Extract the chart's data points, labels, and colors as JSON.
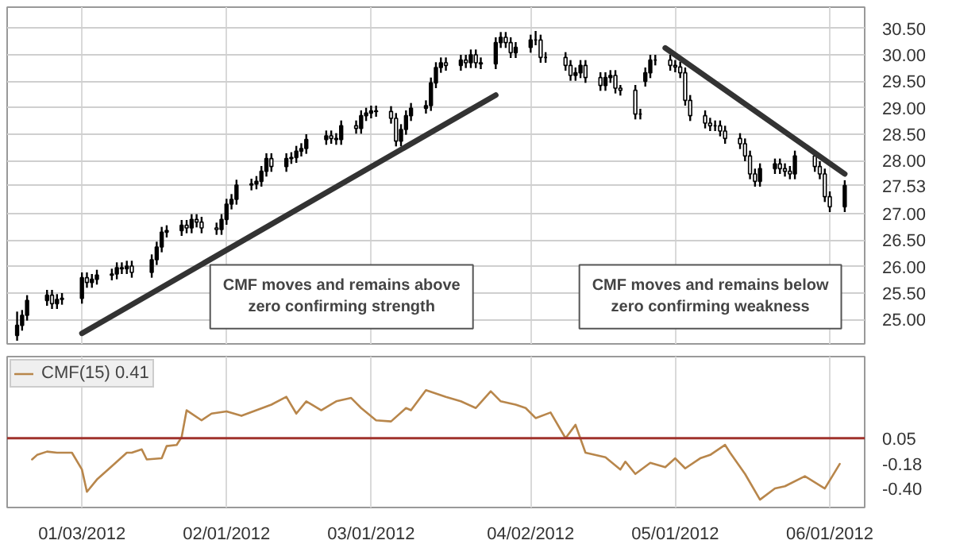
{
  "chart_data": [
    {
      "type": "candlestick",
      "color": "#000000",
      "grid": true,
      "tick_labels": "y",
      "xlim": [
        "2011-12-19",
        "2012-06-08"
      ],
      "xticks": [
        {
          "value": "2012-01-03",
          "label": null
        },
        {
          "value": "2012-02-01",
          "label": null
        },
        {
          "value": "2012-03-01",
          "label": null
        },
        {
          "value": "2012-04-02",
          "label": null
        },
        {
          "value": "2012-05-01",
          "label": null
        },
        {
          "value": "2012-06-01",
          "label": null
        }
      ],
      "ylim": [
        24.54,
        30.9
      ],
      "yticks": [
        {
          "value": 25,
          "label": "25.00"
        },
        {
          "value": 25.5,
          "label": "25.50"
        },
        {
          "value": 26,
          "label": "26.00"
        },
        {
          "value": 26.5,
          "label": "26.50"
        },
        {
          "value": 27,
          "label": "27.00"
        },
        {
          "value": 27.53,
          "label": "27.53"
        },
        {
          "value": 28,
          "label": "28.00"
        },
        {
          "value": 28.5,
          "label": "28.50"
        },
        {
          "value": 29,
          "label": "29.00"
        },
        {
          "value": 29.5,
          "label": "29.50"
        },
        {
          "value": 30,
          "label": "30.00"
        },
        {
          "value": 30.5,
          "label": "30.50"
        }
      ],
      "x": [
        "2011-12-21",
        "2011-12-22",
        "2011-12-23",
        "2011-12-27",
        "2011-12-28",
        "2011-12-29",
        "2011-12-30",
        "2012-01-03",
        "2012-01-04",
        "2012-01-05",
        "2012-01-06",
        "2012-01-09",
        "2012-01-10",
        "2012-01-11",
        "2012-01-12",
        "2012-01-13",
        "2012-01-17",
        "2012-01-18",
        "2012-01-19",
        "2012-01-20",
        "2012-01-23",
        "2012-01-24",
        "2012-01-25",
        "2012-01-26",
        "2012-01-27",
        "2012-01-30",
        "2012-01-31",
        "2012-02-01",
        "2012-02-02",
        "2012-02-03",
        "2012-02-06",
        "2012-02-07",
        "2012-02-08",
        "2012-02-09",
        "2012-02-10",
        "2012-02-13",
        "2012-02-14",
        "2012-02-15",
        "2012-02-16",
        "2012-02-17",
        "2012-02-21",
        "2012-02-22",
        "2012-02-23",
        "2012-02-24",
        "2012-02-27",
        "2012-02-28",
        "2012-02-29",
        "2012-03-01",
        "2012-03-02",
        "2012-03-05",
        "2012-03-06",
        "2012-03-07",
        "2012-03-08",
        "2012-03-09",
        "2012-03-12",
        "2012-03-13",
        "2012-03-14",
        "2012-03-15",
        "2012-03-16",
        "2012-03-19",
        "2012-03-20",
        "2012-03-21",
        "2012-03-22",
        "2012-03-23",
        "2012-03-26",
        "2012-03-27",
        "2012-03-28",
        "2012-03-29",
        "2012-03-30",
        "2012-04-02",
        "2012-04-03",
        "2012-04-04",
        "2012-04-05",
        "2012-04-09",
        "2012-04-10",
        "2012-04-11",
        "2012-04-12",
        "2012-04-13",
        "2012-04-16",
        "2012-04-17",
        "2012-04-18",
        "2012-04-19",
        "2012-04-20",
        "2012-04-23",
        "2012-04-24",
        "2012-04-25",
        "2012-04-26",
        "2012-04-27",
        "2012-04-30",
        "2012-05-01",
        "2012-05-02",
        "2012-05-03",
        "2012-05-04",
        "2012-05-07",
        "2012-05-08",
        "2012-05-09",
        "2012-05-10",
        "2012-05-11",
        "2012-05-14",
        "2012-05-15",
        "2012-05-16",
        "2012-05-17",
        "2012-05-18",
        "2012-05-21",
        "2012-05-22",
        "2012-05-23",
        "2012-05-24",
        "2012-05-25",
        "2012-05-29",
        "2012-05-30",
        "2012-05-31",
        "2012-06-01",
        "2012-06-04"
      ],
      "ohlc": [
        [
          24.7,
          25.15,
          24.6,
          24.89
        ],
        [
          24.89,
          25.18,
          24.79,
          25.08
        ],
        [
          25.08,
          25.46,
          24.98,
          25.36
        ],
        [
          25.36,
          25.56,
          25.26,
          25.46
        ],
        [
          25.46,
          25.56,
          25.2,
          25.3
        ],
        [
          25.3,
          25.48,
          25.2,
          25.38
        ],
        [
          25.38,
          25.5,
          25.28,
          25.4
        ],
        [
          25.4,
          25.89,
          25.3,
          25.79
        ],
        [
          25.79,
          25.89,
          25.6,
          25.7
        ],
        [
          25.7,
          25.86,
          25.6,
          25.76
        ],
        [
          25.76,
          25.94,
          25.66,
          25.84
        ],
        [
          25.84,
          25.96,
          25.74,
          25.86
        ],
        [
          25.86,
          26.08,
          25.76,
          25.98
        ],
        [
          25.98,
          26.08,
          25.86,
          25.96
        ],
        [
          25.96,
          26.11,
          25.86,
          26.01
        ],
        [
          26.01,
          26.11,
          25.79,
          25.89
        ],
        [
          25.89,
          26.23,
          25.79,
          26.13
        ],
        [
          26.13,
          26.47,
          26.03,
          26.37
        ],
        [
          26.37,
          26.75,
          26.27,
          26.65
        ],
        [
          26.65,
          26.78,
          26.55,
          26.68
        ],
        [
          26.68,
          26.88,
          26.58,
          26.78
        ],
        [
          26.78,
          26.88,
          26.63,
          26.73
        ],
        [
          26.73,
          26.99,
          26.63,
          26.89
        ],
        [
          26.89,
          26.99,
          26.74,
          26.84
        ],
        [
          26.84,
          26.94,
          26.63,
          26.73
        ],
        [
          26.73,
          26.83,
          26.6,
          26.7
        ],
        [
          26.7,
          26.99,
          26.6,
          26.89
        ],
        [
          26.89,
          27.28,
          26.79,
          27.18
        ],
        [
          27.18,
          27.37,
          27.08,
          27.27
        ],
        [
          27.27,
          27.64,
          27.17,
          27.54
        ],
        [
          27.54,
          27.66,
          27.44,
          27.56
        ],
        [
          27.56,
          27.71,
          27.46,
          27.61
        ],
        [
          27.61,
          27.9,
          27.51,
          27.8
        ],
        [
          27.8,
          28.14,
          27.7,
          28.04
        ],
        [
          28.04,
          28.14,
          27.79,
          27.89
        ],
        [
          27.89,
          28.14,
          27.79,
          28.04
        ],
        [
          28.04,
          28.16,
          27.94,
          28.06
        ],
        [
          28.06,
          28.28,
          27.96,
          28.18
        ],
        [
          28.18,
          28.33,
          28.08,
          28.23
        ],
        [
          28.23,
          28.5,
          28.13,
          28.4
        ],
        [
          28.4,
          28.57,
          28.3,
          28.47
        ],
        [
          28.47,
          28.57,
          28.32,
          28.42
        ],
        [
          28.42,
          28.52,
          28.3,
          28.4
        ],
        [
          28.4,
          28.76,
          28.3,
          28.66
        ],
        [
          28.66,
          28.76,
          28.51,
          28.61
        ],
        [
          28.61,
          28.95,
          28.51,
          28.85
        ],
        [
          28.85,
          29.0,
          28.75,
          28.9
        ],
        [
          28.9,
          29.04,
          28.8,
          28.94
        ],
        [
          28.94,
          29.04,
          28.83,
          28.93
        ],
        [
          28.93,
          29.03,
          28.7,
          28.8
        ],
        [
          28.8,
          28.9,
          28.27,
          28.37
        ],
        [
          28.37,
          28.69,
          28.27,
          28.59
        ],
        [
          28.59,
          28.95,
          28.49,
          28.85
        ],
        [
          28.85,
          29.09,
          28.75,
          28.99
        ],
        [
          28.99,
          29.14,
          28.89,
          29.04
        ],
        [
          29.04,
          29.57,
          28.94,
          29.47
        ],
        [
          29.47,
          29.86,
          29.37,
          29.76
        ],
        [
          29.76,
          29.95,
          29.66,
          29.85
        ],
        [
          29.85,
          29.95,
          29.7,
          29.8
        ],
        [
          29.8,
          30.0,
          29.7,
          29.9
        ],
        [
          29.9,
          30.0,
          29.75,
          29.85
        ],
        [
          29.85,
          30.1,
          29.75,
          30.0
        ],
        [
          30.0,
          30.1,
          29.75,
          29.85
        ],
        [
          29.85,
          29.95,
          29.73,
          29.83
        ],
        [
          29.83,
          30.33,
          29.73,
          30.23
        ],
        [
          30.23,
          30.43,
          30.13,
          30.33
        ],
        [
          30.33,
          30.43,
          30.13,
          30.23
        ],
        [
          30.23,
          30.33,
          29.94,
          30.04
        ],
        [
          30.04,
          30.24,
          29.94,
          30.14
        ],
        [
          30.14,
          30.38,
          30.04,
          30.28
        ],
        [
          30.28,
          30.45,
          30.18,
          30.28
        ],
        [
          30.28,
          30.38,
          29.85,
          29.95
        ],
        [
          29.95,
          30.05,
          29.85,
          29.95
        ],
        [
          29.95,
          30.05,
          29.7,
          29.8
        ],
        [
          29.8,
          29.9,
          29.51,
          29.61
        ],
        [
          29.61,
          29.76,
          29.51,
          29.66
        ],
        [
          29.66,
          29.9,
          29.56,
          29.8
        ],
        [
          29.8,
          29.9,
          29.47,
          29.57
        ],
        [
          29.57,
          29.67,
          29.32,
          29.42
        ],
        [
          29.42,
          29.67,
          29.32,
          29.57
        ],
        [
          29.57,
          29.71,
          29.47,
          29.61
        ],
        [
          29.61,
          29.71,
          29.27,
          29.37
        ],
        [
          29.37,
          29.43,
          29.23,
          29.33
        ],
        [
          29.33,
          29.43,
          28.78,
          28.88
        ],
        [
          28.88,
          28.98,
          28.78,
          28.88
        ],
        [
          29.5,
          29.76,
          29.4,
          29.66
        ],
        [
          29.66,
          30.0,
          29.56,
          29.9
        ],
        [
          29.9,
          30.0,
          29.8,
          29.9
        ],
        [
          29.9,
          30.0,
          29.7,
          29.8
        ],
        [
          29.8,
          29.9,
          29.67,
          29.77
        ],
        [
          29.77,
          29.87,
          29.56,
          29.66
        ],
        [
          29.66,
          29.76,
          29.04,
          29.14
        ],
        [
          29.14,
          29.24,
          28.75,
          28.85
        ],
        [
          28.85,
          28.95,
          28.61,
          28.71
        ],
        [
          28.71,
          28.81,
          28.56,
          28.66
        ],
        [
          28.66,
          28.76,
          28.56,
          28.66
        ],
        [
          28.66,
          28.76,
          28.46,
          28.56
        ],
        [
          28.56,
          28.66,
          28.32,
          28.42
        ],
        [
          28.42,
          28.52,
          28.22,
          28.32
        ],
        [
          28.32,
          28.42,
          27.99,
          28.09
        ],
        [
          28.09,
          28.19,
          27.65,
          27.75
        ],
        [
          27.75,
          27.85,
          27.51,
          27.61
        ],
        [
          27.61,
          27.95,
          27.51,
          27.85
        ],
        [
          27.85,
          28.04,
          27.75,
          27.94
        ],
        [
          27.94,
          28.04,
          27.75,
          27.85
        ],
        [
          27.85,
          27.95,
          27.7,
          27.8
        ],
        [
          27.8,
          27.9,
          27.65,
          27.75
        ],
        [
          27.75,
          28.19,
          27.65,
          28.09
        ],
        [
          28.09,
          28.19,
          27.79,
          27.89
        ],
        [
          27.89,
          27.99,
          27.65,
          27.75
        ],
        [
          27.75,
          27.85,
          27.22,
          27.32
        ],
        [
          27.32,
          27.42,
          27.03,
          27.13
        ],
        [
          27.13,
          27.63,
          27.03,
          27.53
        ]
      ],
      "series": [
        {
          "type": "line",
          "color": "#333333",
          "x": [
            "2012-01-03",
            "2012-03-26"
          ],
          "values": [
            24.74,
            29.24
          ]
        },
        {
          "type": "line",
          "color": "#333333",
          "x": [
            "2012-04-29",
            "2012-06-04"
          ],
          "values": [
            30.13,
            27.75
          ]
        }
      ],
      "annotations": [
        "CMF moves and remains above zero confirming strength",
        "CMF moves and remains below zero confirming weakness"
      ]
    },
    {
      "type": "line",
      "grid": "x",
      "legend": "top left",
      "xlim": [
        "2011-12-19",
        "2012-06-08"
      ],
      "xticks": [
        {
          "value": "2012-01-03",
          "label": "01/03/2012"
        },
        {
          "value": "2012-02-01",
          "label": "02/01/2012"
        },
        {
          "value": "2012-03-01",
          "label": "03/01/2012"
        },
        {
          "value": "2012-04-02",
          "label": "04/02/2012"
        },
        {
          "value": "2012-05-01",
          "label": "05/01/2012"
        },
        {
          "value": "2012-06-01",
          "label": "06/01/2012"
        }
      ],
      "ylim": [
        -0.57,
        0.78
      ],
      "yticks": [
        {
          "value": -0.4,
          "label": "-0.40"
        },
        {
          "value": -0.18,
          "label": "-0.18"
        },
        {
          "value": 0.05,
          "label": "0.05"
        }
      ],
      "ref_lines": [
        {
          "axis": "y",
          "value": 0.05,
          "color": "#a0322c"
        }
      ],
      "series": [
        {
          "name": "CMF(15) 0.41",
          "color": "#b8864b",
          "x": [
            "2011-12-24",
            "2011-12-25",
            "2011-12-27",
            "2011-12-29",
            "2012-01-01",
            "2012-01-03",
            "2012-01-04",
            "2012-01-06",
            "2012-01-09",
            "2012-01-12",
            "2012-01-13",
            "2012-01-15",
            "2012-01-16",
            "2012-01-19",
            "2012-01-20",
            "2012-01-22",
            "2012-01-23",
            "2012-01-24",
            "2012-01-27",
            "2012-01-29",
            "2012-02-01",
            "2012-02-04",
            "2012-02-07",
            "2012-02-10",
            "2012-02-13",
            "2012-02-15",
            "2012-02-17",
            "2012-02-20",
            "2012-02-23",
            "2012-02-26",
            "2012-02-28",
            "2012-03-02",
            "2012-03-05",
            "2012-03-08",
            "2012-03-09",
            "2012-03-12",
            "2012-03-16",
            "2012-03-19",
            "2012-03-22",
            "2012-03-25",
            "2012-03-27",
            "2012-03-30",
            "2012-04-01",
            "2012-04-03",
            "2012-04-06",
            "2012-04-09",
            "2012-04-11",
            "2012-04-13",
            "2012-04-17",
            "2012-04-20",
            "2012-04-21",
            "2012-04-23",
            "2012-04-26",
            "2012-04-29",
            "2012-05-01",
            "2012-05-03",
            "2012-05-06",
            "2012-05-08",
            "2012-05-11",
            "2012-05-12",
            "2012-05-15",
            "2012-05-18",
            "2012-05-21",
            "2012-05-23",
            "2012-05-27",
            "2012-05-31",
            "2012-06-03"
          ],
          "values": [
            -0.14,
            -0.1,
            -0.07,
            -0.08,
            -0.08,
            -0.23,
            -0.43,
            -0.32,
            -0.2,
            -0.08,
            -0.08,
            -0.05,
            -0.14,
            -0.13,
            -0.02,
            -0.01,
            0.06,
            0.3,
            0.21,
            0.27,
            0.29,
            0.25,
            0.3,
            0.35,
            0.42,
            0.27,
            0.38,
            0.3,
            0.38,
            0.41,
            0.32,
            0.21,
            0.2,
            0.32,
            0.3,
            0.48,
            0.42,
            0.38,
            0.32,
            0.47,
            0.38,
            0.35,
            0.32,
            0.23,
            0.28,
            0.05,
            0.17,
            -0.08,
            -0.12,
            -0.23,
            -0.16,
            -0.27,
            -0.17,
            -0.21,
            -0.13,
            -0.22,
            -0.13,
            -0.1,
            -0.01,
            -0.08,
            -0.27,
            -0.5,
            -0.4,
            -0.38,
            -0.29,
            -0.4,
            -0.18
          ]
        }
      ]
    }
  ]
}
